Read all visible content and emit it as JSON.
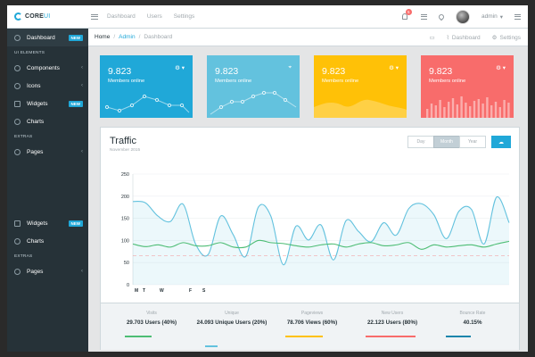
{
  "brand": {
    "name": "CORE",
    "suffix": "UI"
  },
  "topnav": [
    "Dashboard",
    "Users",
    "Settings"
  ],
  "notifications": {
    "count": "5"
  },
  "user": {
    "name": "admin",
    "caret": "▾"
  },
  "sidebar": {
    "dashboard": {
      "label": "Dashboard",
      "badge": "NEW"
    },
    "ui_title": "UI ELEMENTS",
    "components": "Components",
    "icons": "Icons",
    "widgets": {
      "label": "Widgets",
      "badge": "NEW"
    },
    "charts": "Charts",
    "extras_title": "EXTRAS",
    "pages": "Pages",
    "widgets2": {
      "label": "Widgets",
      "badge": "NEW"
    },
    "charts2": "Charts",
    "extras_title2": "EXTRAS",
    "pages2": "Pages",
    "arrow": "‹"
  },
  "breadcrumb": [
    "Home",
    "Admin",
    "Dashboard"
  ],
  "breadcrumb_sep": "/",
  "breadcrumb_actions": {
    "dashboard": "Dashboard",
    "settings": "Settings"
  },
  "widgets": [
    {
      "value": "9.823",
      "label": "Members online",
      "color": "#20a8d8",
      "icon": "gear-icon"
    },
    {
      "value": "9.823",
      "label": "Members online",
      "color": "#63c2de",
      "icon": "map-marker-icon"
    },
    {
      "value": "9.823",
      "label": "Members online",
      "color": "#ffc107",
      "icon": "gear-icon"
    },
    {
      "value": "9.823",
      "label": "Members online",
      "color": "#f86c6b",
      "icon": "gear-icon"
    }
  ],
  "traffic": {
    "title": "Traffic",
    "subtitle": "November 2015",
    "periods": [
      "Day",
      "Month",
      "Year"
    ],
    "selected_period": "Month"
  },
  "chart_data": {
    "type": "line",
    "ylim": [
      0,
      250
    ],
    "yticks": [
      0,
      50,
      100,
      150,
      200,
      250
    ],
    "xtick_labels": [
      "M",
      "T",
      "W",
      "",
      "F",
      "S"
    ],
    "threshold": 65,
    "series": [
      {
        "color": "#63c2de",
        "values": [
          188,
          185,
          155,
          143,
          182,
          92,
          68,
          155,
          113,
          64,
          175,
          155,
          45,
          132,
          101,
          135,
          56,
          145,
          120,
          97,
          140,
          112,
          172,
          183,
          158,
          104,
          166,
          170,
          92,
          198,
          140
        ]
      },
      {
        "color": "#4dbd74",
        "values": [
          92,
          86,
          90,
          85,
          95,
          88,
          88,
          95,
          85,
          85,
          100,
          95,
          93,
          88,
          85,
          90,
          92,
          85,
          92,
          95,
          88,
          90,
          95,
          80,
          90,
          85,
          88,
          90,
          85,
          92,
          98
        ]
      }
    ]
  },
  "stats": [
    {
      "label": "Visits",
      "value": "29.703 Users (40%)",
      "color": "#4dbd74"
    },
    {
      "label": "Unique",
      "value": "24.093 Unique Users (20%)",
      "color": "#63c2de"
    },
    {
      "label": "Pageviews",
      "value": "78.706 Views (60%)",
      "color": "#ffc107"
    },
    {
      "label": "New Users",
      "value": "22.123 Users (80%)",
      "color": "#f86c6b"
    },
    {
      "label": "Bounce Rate",
      "value": "40.15%",
      "color": "#1985ac"
    }
  ]
}
